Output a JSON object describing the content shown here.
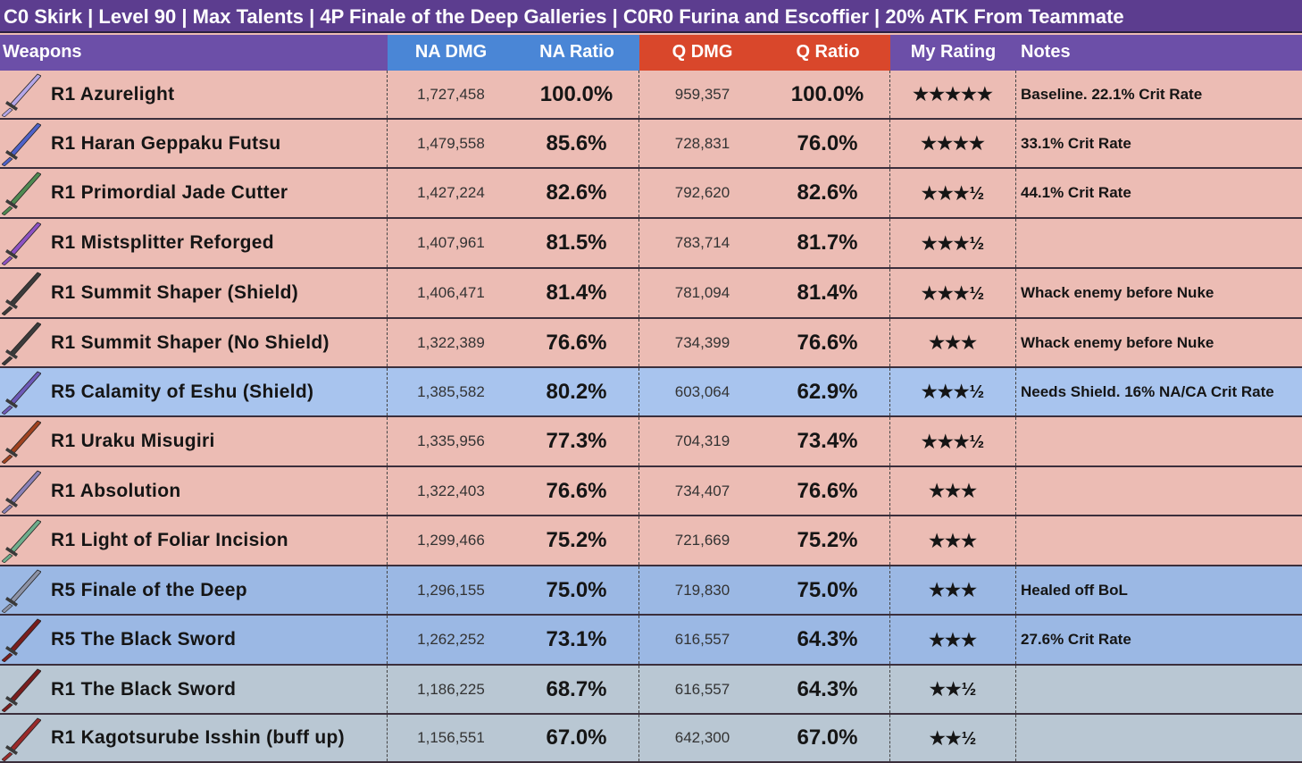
{
  "title": "C0 Skirk | Level 90 | Max Talents | 4P Finale of the Deep Galleries | C0R0 Furina and Escoffier | 20% ATK From Teammate",
  "colors": {
    "title_bg": "#5c3d8f",
    "header_purple": "#6c4fa8",
    "header_blue": "#4a86d6",
    "header_red": "#d9472b",
    "row_pink": "#ecbcb4",
    "row_light_blue": "#a8c4ee",
    "row_blue": "#9bb8e4",
    "row_gray": "#b9c7d3"
  },
  "chart_data": {
    "type": "table",
    "columns": [
      "Weapons",
      "NA DMG",
      "NA Ratio",
      "Q DMG",
      "Q Ratio",
      "My Rating",
      "Notes"
    ],
    "rows": [
      {
        "weapon": "R1 Azurelight",
        "na_dmg": "1,727,458",
        "na_ratio": "100.0%",
        "q_dmg": "959,357",
        "q_ratio": "100.0%",
        "rating": "★★★★★",
        "notes": "Baseline. 22.1% Crit Rate",
        "bg": "#ecbcb4",
        "icon": "sword-icon",
        "icon_color": "#b5a7e8"
      },
      {
        "weapon": "R1 Haran Geppaku Futsu",
        "na_dmg": "1,479,558",
        "na_ratio": "85.6%",
        "q_dmg": "728,831",
        "q_ratio": "76.0%",
        "rating": "★★★★",
        "notes": "33.1% Crit Rate",
        "bg": "#ecbcb4",
        "icon": "sword-icon",
        "icon_color": "#4f62c9"
      },
      {
        "weapon": "R1 Primordial Jade Cutter",
        "na_dmg": "1,427,224",
        "na_ratio": "82.6%",
        "q_dmg": "792,620",
        "q_ratio": "82.6%",
        "rating": "★★★½",
        "notes": "44.1% Crit Rate",
        "bg": "#ecbcb4",
        "icon": "sword-icon",
        "icon_color": "#4f8a52"
      },
      {
        "weapon": "R1 Mistsplitter Reforged",
        "na_dmg": "1,407,961",
        "na_ratio": "81.5%",
        "q_dmg": "783,714",
        "q_ratio": "81.7%",
        "rating": "★★★½",
        "notes": "",
        "bg": "#ecbcb4",
        "icon": "sword-icon",
        "icon_color": "#8d52c4"
      },
      {
        "weapon": "R1 Summit Shaper (Shield)",
        "na_dmg": "1,406,471",
        "na_ratio": "81.4%",
        "q_dmg": "781,094",
        "q_ratio": "81.4%",
        "rating": "★★★½",
        "notes": "Whack enemy before Nuke",
        "bg": "#ecbcb4",
        "icon": "sword-icon",
        "icon_color": "#3b3b3b"
      },
      {
        "weapon": "R1 Summit Shaper (No Shield)",
        "na_dmg": "1,322,389",
        "na_ratio": "76.6%",
        "q_dmg": "734,399",
        "q_ratio": "76.6%",
        "rating": "★★★",
        "notes": "Whack enemy before Nuke",
        "bg": "#ecbcb4",
        "icon": "sword-icon",
        "icon_color": "#3b3b3b"
      },
      {
        "weapon": "R5 Calamity of Eshu (Shield)",
        "na_dmg": "1,385,582",
        "na_ratio": "80.2%",
        "q_dmg": "603,064",
        "q_ratio": "62.9%",
        "rating": "★★★½",
        "notes": "Needs Shield. 16% NA/CA Crit Rate",
        "bg": "#a8c4ee",
        "icon": "sword-icon",
        "icon_color": "#6e5ab8"
      },
      {
        "weapon": "R1 Uraku Misugiri",
        "na_dmg": "1,335,956",
        "na_ratio": "77.3%",
        "q_dmg": "704,319",
        "q_ratio": "73.4%",
        "rating": "★★★½",
        "notes": "",
        "bg": "#ecbcb4",
        "icon": "sword-icon",
        "icon_color": "#a0421f"
      },
      {
        "weapon": "R1 Absolution",
        "na_dmg": "1,322,403",
        "na_ratio": "76.6%",
        "q_dmg": "734,407",
        "q_ratio": "76.6%",
        "rating": "★★★",
        "notes": "",
        "bg": "#ecbcb4",
        "icon": "sword-icon",
        "icon_color": "#8a82b8"
      },
      {
        "weapon": "R1 Light of Foliar Incision",
        "na_dmg": "1,299,466",
        "na_ratio": "75.2%",
        "q_dmg": "721,669",
        "q_ratio": "75.2%",
        "rating": "★★★",
        "notes": "",
        "bg": "#ecbcb4",
        "icon": "sword-icon",
        "icon_color": "#6fae8c"
      },
      {
        "weapon": "R5 Finale of the Deep",
        "na_dmg": "1,296,155",
        "na_ratio": "75.0%",
        "q_dmg": "719,830",
        "q_ratio": "75.0%",
        "rating": "★★★",
        "notes": "Healed off BoL",
        "bg": "#9bb8e4",
        "icon": "sword-icon",
        "icon_color": "#8d93a6"
      },
      {
        "weapon": "R5 The Black Sword",
        "na_dmg": "1,262,252",
        "na_ratio": "73.1%",
        "q_dmg": "616,557",
        "q_ratio": "64.3%",
        "rating": "★★★",
        "notes": "27.6% Crit Rate",
        "bg": "#9bb8e4",
        "icon": "sword-icon",
        "icon_color": "#7a1d1d"
      },
      {
        "weapon": "R1 The Black Sword",
        "na_dmg": "1,186,225",
        "na_ratio": "68.7%",
        "q_dmg": "616,557",
        "q_ratio": "64.3%",
        "rating": "★★½",
        "notes": "",
        "bg": "#b9c7d3",
        "icon": "sword-icon",
        "icon_color": "#7a1d1d"
      },
      {
        "weapon": "R1 Kagotsurube Isshin (buff up)",
        "na_dmg": "1,156,551",
        "na_ratio": "67.0%",
        "q_dmg": "642,300",
        "q_ratio": "67.0%",
        "rating": "★★½",
        "notes": "",
        "bg": "#b9c7d3",
        "icon": "sword-icon",
        "icon_color": "#9a2a2a"
      }
    ]
  }
}
